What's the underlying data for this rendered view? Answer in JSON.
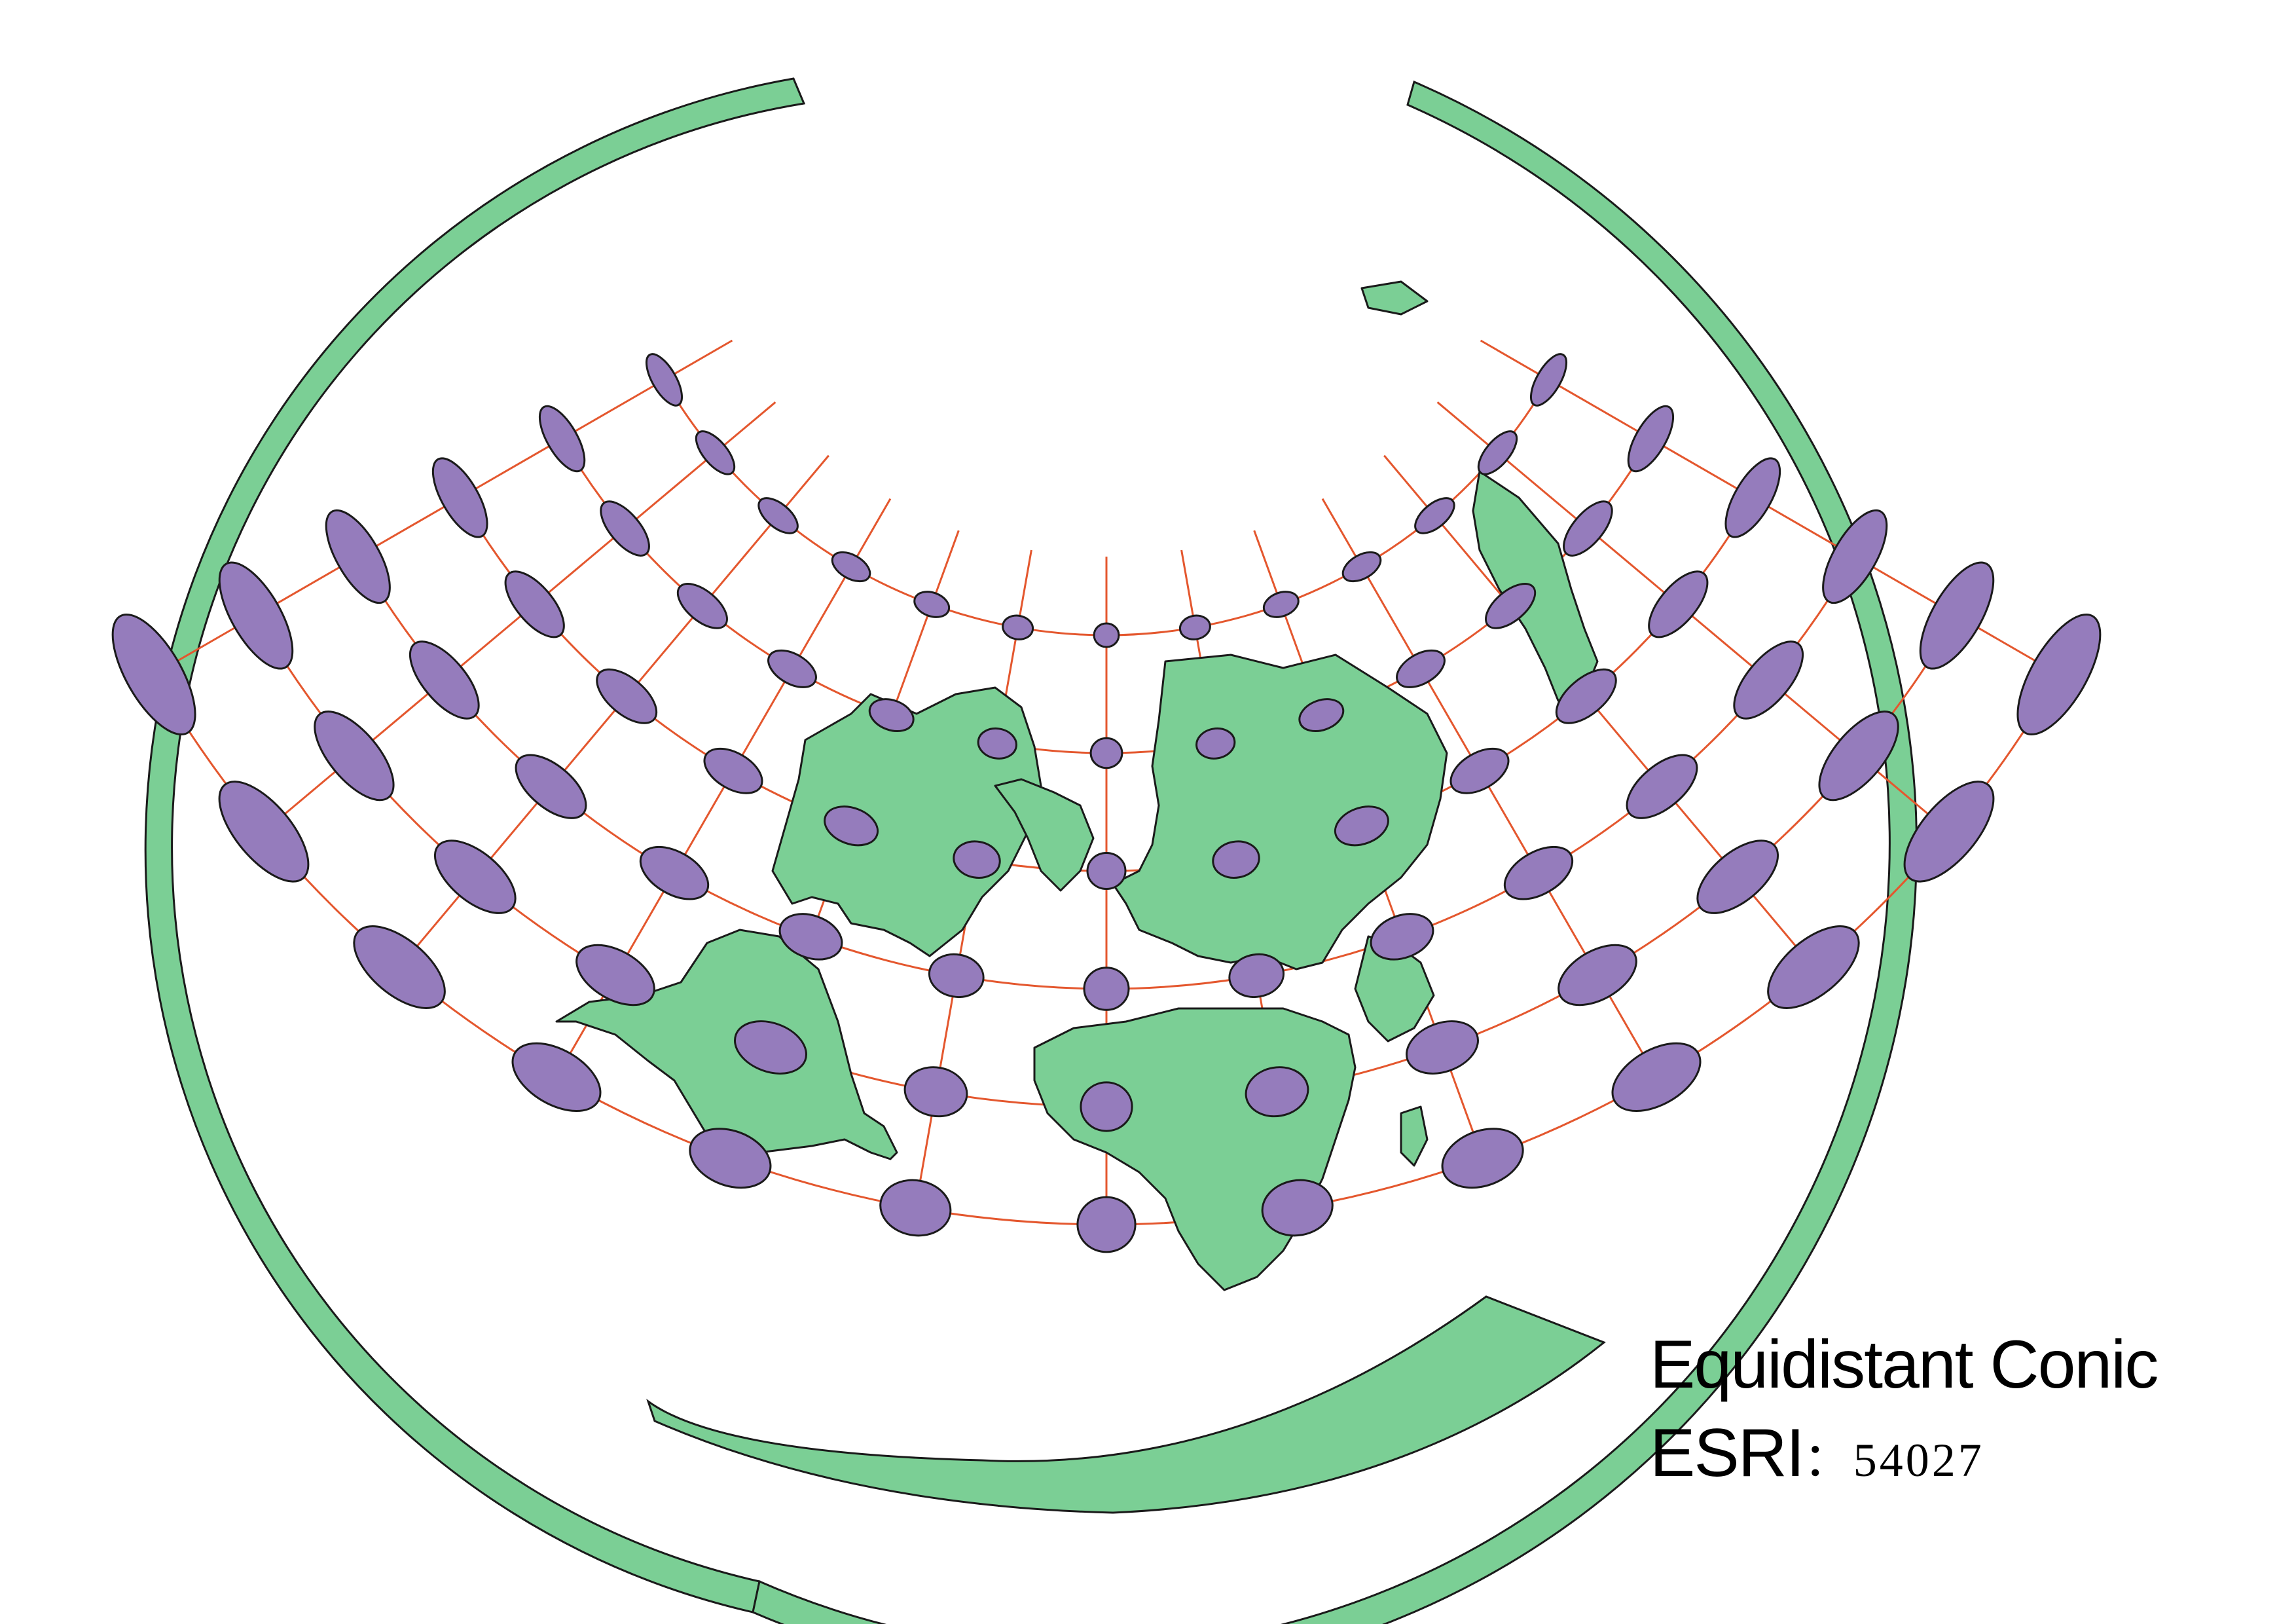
{
  "map": {
    "projection_name": "Equidistant Conic",
    "code_prefix": "ESRI",
    "code_separator": "：",
    "code_number": "54027",
    "colors": {
      "land": "#7bcf95",
      "outline": "#1a1a1a",
      "ellipse_fill": "#957cbc",
      "graticule": "#e4572e",
      "background": "#ffffff"
    },
    "layers": [
      "graticule",
      "tissot-indicatrix",
      "land-masses",
      "country-borders",
      "sphere-outline"
    ],
    "graticule": {
      "meridian_count": 13,
      "parallel_count": 6
    },
    "legend_visible": false
  }
}
